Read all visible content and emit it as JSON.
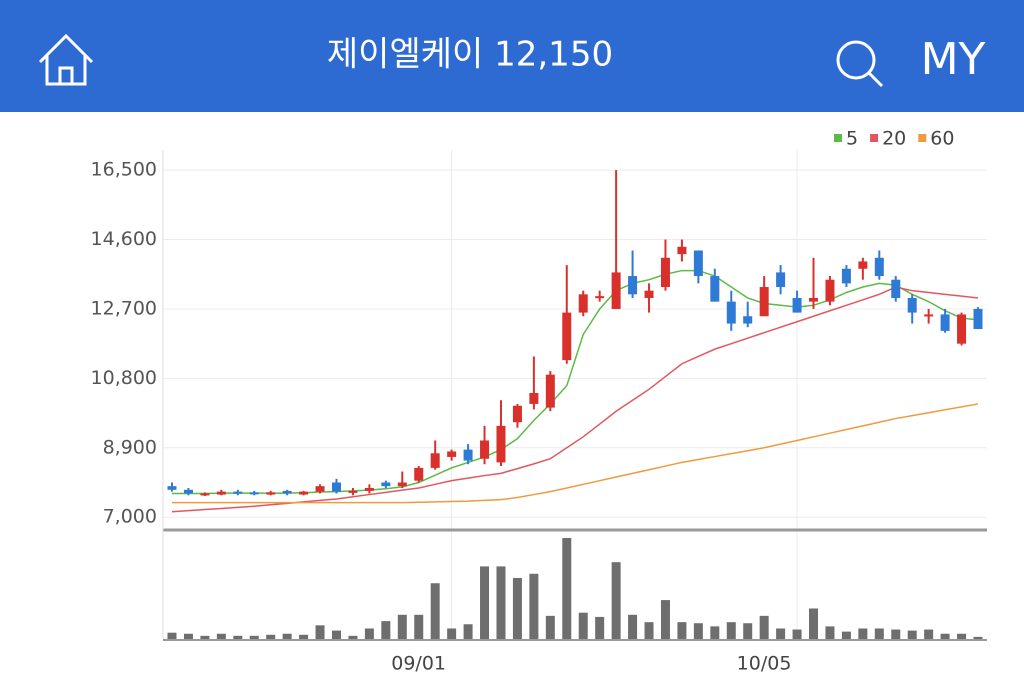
{
  "header": {
    "title": "제이엘케이 12,150",
    "my": "MY"
  },
  "chart_data": {
    "type": "candlestick",
    "categories": [
      null,
      null,
      null,
      null,
      null,
      null,
      null,
      null,
      null,
      null,
      null,
      null,
      null,
      null,
      null,
      null,
      null,
      "09/01",
      null,
      null,
      null,
      null,
      null,
      null,
      null,
      null,
      null,
      null,
      null,
      null,
      null,
      null,
      null,
      null,
      null,
      null,
      null,
      null,
      "10/05",
      null,
      null,
      null,
      null,
      null,
      null,
      null,
      null,
      null,
      null,
      null
    ],
    "open": [
      7850,
      7750,
      7600,
      7620,
      7700,
      7680,
      7620,
      7720,
      7620,
      7700,
      7950,
      7680,
      7720,
      7950,
      7850,
      8000,
      8350,
      8650,
      8850,
      8600,
      8500,
      9600,
      10100,
      10000,
      11300,
      12600,
      13000,
      12700,
      13600,
      13000,
      13300,
      14200,
      14300,
      13600,
      12900,
      12500,
      12500,
      13700,
      13000,
      12900,
      12900,
      13800,
      13800,
      14100,
      13500,
      13000,
      12500,
      12550,
      11750,
      12700
    ],
    "high": [
      7950,
      7800,
      7680,
      7750,
      7750,
      7720,
      7720,
      7750,
      7720,
      7900,
      8050,
      7800,
      7900,
      8000,
      8250,
      8400,
      9100,
      8850,
      9000,
      9500,
      10200,
      10100,
      11400,
      11000,
      13900,
      13200,
      13200,
      16500,
      14300,
      13400,
      14600,
      14600,
      14300,
      13800,
      13200,
      12900,
      13600,
      13900,
      13200,
      14100,
      13600,
      13900,
      14100,
      14300,
      13600,
      13100,
      12700,
      12700,
      12600,
      12750
    ],
    "low": [
      7700,
      7600,
      7580,
      7600,
      7600,
      7600,
      7600,
      7600,
      7600,
      7650,
      7650,
      7600,
      7650,
      7800,
      7800,
      7950,
      8300,
      8550,
      8450,
      8450,
      8400,
      9450,
      9950,
      9900,
      11200,
      12500,
      12900,
      12700,
      13000,
      12600,
      13200,
      14000,
      13400,
      12900,
      12100,
      12200,
      12500,
      13100,
      12600,
      12700,
      12800,
      13300,
      13500,
      13500,
      12900,
      12300,
      12300,
      12050,
      11700,
      12150
    ],
    "close": [
      7750,
      7650,
      7650,
      7700,
      7650,
      7650,
      7680,
      7650,
      7700,
      7850,
      7700,
      7720,
      7800,
      7850,
      7950,
      8350,
      8750,
      8800,
      8550,
      9100,
      9500,
      10050,
      10400,
      10900,
      12600,
      13100,
      13050,
      13700,
      13100,
      13200,
      14100,
      14400,
      13600,
      12900,
      12300,
      12300,
      13300,
      13300,
      12600,
      13000,
      13500,
      13400,
      14000,
      13600,
      13000,
      12600,
      12550,
      12100,
      12550,
      12150
    ],
    "up_color": "#d9302c",
    "down_color": "#2f7ad4",
    "series": [
      {
        "name": "5",
        "color": "#5cba47",
        "values": [
          7650,
          7650,
          7650,
          7660,
          7660,
          7660,
          7660,
          7660,
          7670,
          7690,
          7700,
          7720,
          7740,
          7780,
          7830,
          7950,
          8150,
          8350,
          8500,
          8650,
          8850,
          9150,
          9650,
          10100,
          10600,
          12000,
          12700,
          13200,
          13400,
          13500,
          13650,
          13750,
          13750,
          13600,
          13300,
          13000,
          12850,
          12800,
          12750,
          12800,
          12950,
          13150,
          13300,
          13400,
          13350,
          13100,
          12900,
          12650,
          12450,
          12400
        ]
      },
      {
        "name": "20",
        "color": "#e2575f",
        "values": [
          7150,
          7180,
          7210,
          7240,
          7270,
          7300,
          7340,
          7380,
          7420,
          7460,
          7500,
          7560,
          7620,
          7680,
          7740,
          7800,
          7900,
          8000,
          8070,
          8140,
          8200,
          8330,
          8460,
          8600,
          8900,
          9200,
          9550,
          9900,
          10200,
          10500,
          10850,
          11200,
          11400,
          11600,
          11750,
          11900,
          12050,
          12200,
          12350,
          12500,
          12650,
          12800,
          12950,
          13100,
          13300,
          13200,
          13150,
          13100,
          13050,
          13000
        ]
      },
      {
        "name": "60",
        "color": "#f09a3e",
        "values": [
          7400,
          7400,
          7400,
          7400,
          7400,
          7400,
          7400,
          7400,
          7400,
          7400,
          7400,
          7400,
          7400,
          7400,
          7400,
          7410,
          7420,
          7430,
          7440,
          7460,
          7480,
          7540,
          7620,
          7700,
          7800,
          7900,
          8000,
          8100,
          8200,
          8300,
          8400,
          8500,
          8580,
          8660,
          8740,
          8820,
          8900,
          9000,
          9100,
          9200,
          9300,
          9400,
          9500,
          9600,
          9700,
          9780,
          9860,
          9940,
          10020,
          10100
        ]
      }
    ],
    "volume": {
      "color": "#6e6e6e",
      "values": [
        6,
        5,
        3,
        5,
        3,
        3,
        4,
        5,
        4,
        13,
        8,
        3,
        10,
        17,
        23,
        23,
        53,
        10,
        14,
        69,
        69,
        58,
        62,
        22,
        96,
        25,
        21,
        73,
        23,
        16,
        37,
        16,
        15,
        12,
        16,
        15,
        22,
        10,
        9,
        29,
        12,
        7,
        10,
        10,
        9,
        8,
        9,
        5,
        5,
        2
      ]
    },
    "ylim": [
      6650,
      17050
    ],
    "yticks": [
      {
        "value": 7000,
        "label": "7,000"
      },
      {
        "value": 8900,
        "label": "8,900"
      },
      {
        "value": 10800,
        "label": "10,800"
      },
      {
        "value": 12700,
        "label": "12,700"
      },
      {
        "value": 14600,
        "label": "14,600"
      },
      {
        "value": 16500,
        "label": "16,500"
      }
    ],
    "grid": true
  }
}
